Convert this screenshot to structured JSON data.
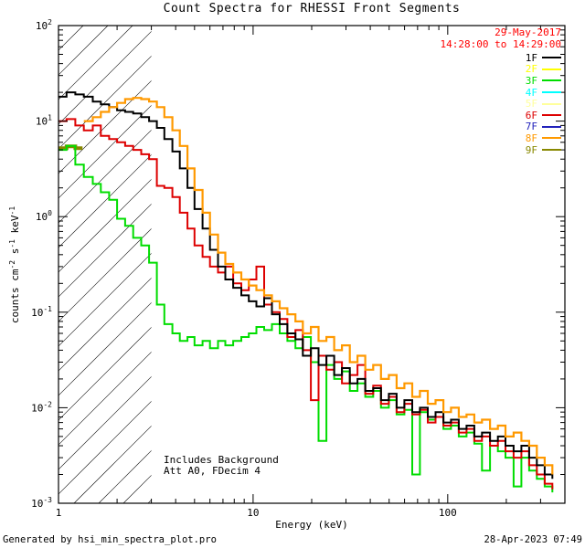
{
  "title": "Count Spectra for RHESSI Front Segments",
  "legend": {
    "date": "29-May-2017",
    "time_range": "14:28:00 to 14:29:00",
    "date_color": "#ff0000",
    "entries": [
      {
        "label": "1F",
        "color": "#000000"
      },
      {
        "label": "2F",
        "color": "#ffff00"
      },
      {
        "label": "3F",
        "color": "#00dd00"
      },
      {
        "label": "4F",
        "color": "#00ffff"
      },
      {
        "label": "5F",
        "color": "#ffff9c"
      },
      {
        "label": "6F",
        "color": "#dd0000"
      },
      {
        "label": "7F",
        "color": "#2222bb"
      },
      {
        "label": "8F",
        "color": "#ff9900"
      },
      {
        "label": "9F",
        "color": "#888800"
      }
    ]
  },
  "annotations": {
    "line1": "Includes Background",
    "line2": "Att A0, FDecim 4"
  },
  "footer": {
    "left": "Generated by hsi_min_spectra_plot.pro",
    "right": "28-Apr-2023 07:49"
  },
  "chart_data": {
    "type": "line",
    "title": "Count Spectra for RHESSI Front Segments",
    "xlabel": "Energy (keV)",
    "ylabel": "counts cm^-2 s^-1 keV^-1",
    "ylabel_parts": [
      {
        "t": "counts cm"
      },
      {
        "t": "-2",
        "sup": true
      },
      {
        "t": " s"
      },
      {
        "t": "-1",
        "sup": true
      },
      {
        "t": " keV"
      },
      {
        "t": "-1",
        "sup": true
      }
    ],
    "xscale": "log",
    "yscale": "log",
    "xlim": [
      1,
      400
    ],
    "ylim": [
      0.001,
      100
    ],
    "xticks": {
      "values": [
        1,
        10,
        100
      ],
      "labels": [
        "1",
        "10",
        "100"
      ]
    },
    "yticks": {
      "exponents": [
        -3,
        -2,
        -1,
        0,
        1,
        2
      ]
    },
    "hatched_region": {
      "x_start": 1,
      "x_end": 3,
      "style": "diagonal-hatch"
    },
    "grid": false,
    "legend_position": "top-right",
    "series": [
      {
        "name": "9F",
        "color": "#888800",
        "line_width": 4,
        "points": [
          [
            1.0,
            5.2
          ],
          [
            1.1,
            5.45
          ],
          [
            1.22,
            5.2
          ],
          [
            1.3,
            5.0
          ]
        ]
      },
      {
        "name": "3F",
        "color": "#00dd00",
        "line_width": 2,
        "points": [
          [
            1.0,
            5.0
          ],
          [
            1.1,
            5.5
          ],
          [
            1.22,
            3.5
          ],
          [
            1.35,
            2.6
          ],
          [
            1.5,
            2.2
          ],
          [
            1.65,
            1.8
          ],
          [
            1.82,
            1.5
          ],
          [
            2.0,
            0.95
          ],
          [
            2.2,
            0.8
          ],
          [
            2.42,
            0.6
          ],
          [
            2.66,
            0.5
          ],
          [
            2.92,
            0.33
          ],
          [
            3.2,
            0.12
          ],
          [
            3.5,
            0.075
          ],
          [
            3.85,
            0.06
          ],
          [
            4.2,
            0.05
          ],
          [
            4.6,
            0.055
          ],
          [
            5.0,
            0.045
          ],
          [
            5.5,
            0.05
          ],
          [
            6.0,
            0.042
          ],
          [
            6.6,
            0.05
          ],
          [
            7.2,
            0.045
          ],
          [
            7.9,
            0.05
          ],
          [
            8.7,
            0.055
          ],
          [
            9.5,
            0.06
          ],
          [
            10.4,
            0.07
          ],
          [
            11.4,
            0.065
          ],
          [
            12.5,
            0.075
          ],
          [
            13.7,
            0.06
          ],
          [
            15.0,
            0.05
          ],
          [
            16.5,
            0.042
          ],
          [
            18.0,
            0.055
          ],
          [
            19.8,
            0.03
          ],
          [
            21.7,
            0.0045
          ],
          [
            23.8,
            0.028
          ],
          [
            26.1,
            0.02
          ],
          [
            28.6,
            0.024
          ],
          [
            31.4,
            0.015
          ],
          [
            34.4,
            0.018
          ],
          [
            37.7,
            0.013
          ],
          [
            41.4,
            0.015
          ],
          [
            45.4,
            0.01
          ],
          [
            49.8,
            0.012
          ],
          [
            54.6,
            0.0085
          ],
          [
            59.9,
            0.0095
          ],
          [
            65.7,
            0.002
          ],
          [
            72.0,
            0.009
          ],
          [
            79.0,
            0.0075
          ],
          [
            86.6,
            0.008
          ],
          [
            95.0,
            0.006
          ],
          [
            104,
            0.0065
          ],
          [
            114,
            0.005
          ],
          [
            125,
            0.0055
          ],
          [
            137,
            0.0042
          ],
          [
            150,
            0.0022
          ],
          [
            165,
            0.004
          ],
          [
            181,
            0.0035
          ],
          [
            198,
            0.003
          ],
          [
            218,
            0.0015
          ],
          [
            239,
            0.003
          ],
          [
            262,
            0.0022
          ],
          [
            287,
            0.0018
          ],
          [
            315,
            0.0015
          ],
          [
            345,
            0.0013
          ]
        ]
      },
      {
        "name": "6F",
        "color": "#dd0000",
        "line_width": 2,
        "points": [
          [
            1.0,
            10
          ],
          [
            1.1,
            10.5
          ],
          [
            1.22,
            9
          ],
          [
            1.35,
            8
          ],
          [
            1.5,
            9
          ],
          [
            1.65,
            7
          ],
          [
            1.82,
            6.5
          ],
          [
            2.0,
            6
          ],
          [
            2.2,
            5.5
          ],
          [
            2.42,
            5
          ],
          [
            2.66,
            4.5
          ],
          [
            2.92,
            4
          ],
          [
            3.2,
            2.1
          ],
          [
            3.5,
            2.0
          ],
          [
            3.85,
            1.6
          ],
          [
            4.2,
            1.1
          ],
          [
            4.6,
            0.75
          ],
          [
            5.0,
            0.5
          ],
          [
            5.5,
            0.38
          ],
          [
            6.0,
            0.3
          ],
          [
            6.6,
            0.26
          ],
          [
            7.2,
            0.3
          ],
          [
            7.9,
            0.2
          ],
          [
            8.7,
            0.17
          ],
          [
            9.5,
            0.22
          ],
          [
            10.4,
            0.3
          ],
          [
            11.4,
            0.12
          ],
          [
            12.5,
            0.1
          ],
          [
            13.7,
            0.085
          ],
          [
            15.0,
            0.055
          ],
          [
            16.5,
            0.065
          ],
          [
            18.0,
            0.04
          ],
          [
            19.8,
            0.012
          ],
          [
            21.7,
            0.035
          ],
          [
            23.8,
            0.025
          ],
          [
            26.1,
            0.03
          ],
          [
            28.6,
            0.018
          ],
          [
            31.4,
            0.022
          ],
          [
            34.4,
            0.028
          ],
          [
            37.7,
            0.014
          ],
          [
            41.4,
            0.017
          ],
          [
            45.4,
            0.011
          ],
          [
            49.8,
            0.013
          ],
          [
            54.6,
            0.009
          ],
          [
            59.9,
            0.011
          ],
          [
            65.7,
            0.0085
          ],
          [
            72.0,
            0.0095
          ],
          [
            79.0,
            0.007
          ],
          [
            86.6,
            0.008
          ],
          [
            95.0,
            0.0065
          ],
          [
            104,
            0.007
          ],
          [
            114,
            0.0055
          ],
          [
            125,
            0.006
          ],
          [
            137,
            0.0045
          ],
          [
            150,
            0.005
          ],
          [
            165,
            0.004
          ],
          [
            181,
            0.0045
          ],
          [
            198,
            0.0035
          ],
          [
            218,
            0.003
          ],
          [
            239,
            0.0035
          ],
          [
            262,
            0.0025
          ],
          [
            287,
            0.002
          ],
          [
            315,
            0.0016
          ],
          [
            345,
            0.0014
          ]
        ]
      },
      {
        "name": "1F",
        "color": "#000000",
        "line_width": 2,
        "points": [
          [
            1.0,
            18
          ],
          [
            1.1,
            20
          ],
          [
            1.22,
            19
          ],
          [
            1.35,
            18
          ],
          [
            1.5,
            16
          ],
          [
            1.65,
            15
          ],
          [
            1.82,
            14
          ],
          [
            2.0,
            13
          ],
          [
            2.2,
            12.5
          ],
          [
            2.42,
            12
          ],
          [
            2.66,
            11
          ],
          [
            2.92,
            10
          ],
          [
            3.2,
            8.5
          ],
          [
            3.5,
            6.5
          ],
          [
            3.85,
            4.8
          ],
          [
            4.2,
            3.2
          ],
          [
            4.6,
            2.0
          ],
          [
            5.0,
            1.2
          ],
          [
            5.5,
            0.75
          ],
          [
            6.0,
            0.45
          ],
          [
            6.6,
            0.3
          ],
          [
            7.2,
            0.22
          ],
          [
            7.9,
            0.18
          ],
          [
            8.7,
            0.15
          ],
          [
            9.5,
            0.13
          ],
          [
            10.4,
            0.115
          ],
          [
            11.4,
            0.14
          ],
          [
            12.5,
            0.095
          ],
          [
            13.7,
            0.075
          ],
          [
            15.0,
            0.06
          ],
          [
            16.5,
            0.052
          ],
          [
            18.0,
            0.035
          ],
          [
            19.8,
            0.042
          ],
          [
            21.7,
            0.028
          ],
          [
            23.8,
            0.035
          ],
          [
            26.1,
            0.022
          ],
          [
            28.6,
            0.026
          ],
          [
            31.4,
            0.018
          ],
          [
            34.4,
            0.02
          ],
          [
            37.7,
            0.015
          ],
          [
            41.4,
            0.016
          ],
          [
            45.4,
            0.012
          ],
          [
            49.8,
            0.014
          ],
          [
            54.6,
            0.01
          ],
          [
            59.9,
            0.012
          ],
          [
            65.7,
            0.009
          ],
          [
            72.0,
            0.01
          ],
          [
            79.0,
            0.008
          ],
          [
            86.6,
            0.009
          ],
          [
            95.0,
            0.007
          ],
          [
            104,
            0.0075
          ],
          [
            114,
            0.006
          ],
          [
            125,
            0.0065
          ],
          [
            137,
            0.005
          ],
          [
            150,
            0.0055
          ],
          [
            165,
            0.0045
          ],
          [
            181,
            0.005
          ],
          [
            198,
            0.004
          ],
          [
            218,
            0.0035
          ],
          [
            239,
            0.004
          ],
          [
            262,
            0.003
          ],
          [
            287,
            0.0025
          ],
          [
            315,
            0.002
          ],
          [
            345,
            0.0018
          ]
        ]
      },
      {
        "name": "8F",
        "color": "#ff9900",
        "line_width": 2.2,
        "points": [
          [
            1.35,
            10
          ],
          [
            1.5,
            11
          ],
          [
            1.65,
            12.5
          ],
          [
            1.82,
            14
          ],
          [
            2.0,
            15.5
          ],
          [
            2.2,
            17
          ],
          [
            2.42,
            17.5
          ],
          [
            2.66,
            17
          ],
          [
            2.92,
            16
          ],
          [
            3.2,
            14
          ],
          [
            3.5,
            11
          ],
          [
            3.85,
            8
          ],
          [
            4.2,
            5.5
          ],
          [
            4.6,
            3.2
          ],
          [
            5.0,
            1.9
          ],
          [
            5.5,
            1.1
          ],
          [
            6.0,
            0.65
          ],
          [
            6.6,
            0.42
          ],
          [
            7.2,
            0.32
          ],
          [
            7.9,
            0.26
          ],
          [
            8.7,
            0.22
          ],
          [
            9.5,
            0.19
          ],
          [
            10.4,
            0.17
          ],
          [
            11.4,
            0.15
          ],
          [
            12.5,
            0.13
          ],
          [
            13.7,
            0.11
          ],
          [
            15.0,
            0.095
          ],
          [
            16.5,
            0.08
          ],
          [
            18.0,
            0.06
          ],
          [
            19.8,
            0.07
          ],
          [
            21.7,
            0.05
          ],
          [
            23.8,
            0.055
          ],
          [
            26.1,
            0.04
          ],
          [
            28.6,
            0.045
          ],
          [
            31.4,
            0.03
          ],
          [
            34.4,
            0.035
          ],
          [
            37.7,
            0.025
          ],
          [
            41.4,
            0.028
          ],
          [
            45.4,
            0.02
          ],
          [
            49.8,
            0.022
          ],
          [
            54.6,
            0.016
          ],
          [
            59.9,
            0.018
          ],
          [
            65.7,
            0.013
          ],
          [
            72.0,
            0.015
          ],
          [
            79.0,
            0.011
          ],
          [
            86.6,
            0.012
          ],
          [
            95.0,
            0.009
          ],
          [
            104,
            0.01
          ],
          [
            114,
            0.008
          ],
          [
            125,
            0.0085
          ],
          [
            137,
            0.007
          ],
          [
            150,
            0.0075
          ],
          [
            165,
            0.006
          ],
          [
            181,
            0.0065
          ],
          [
            198,
            0.005
          ],
          [
            218,
            0.0055
          ],
          [
            239,
            0.0045
          ],
          [
            262,
            0.004
          ],
          [
            287,
            0.003
          ],
          [
            315,
            0.0025
          ],
          [
            345,
            0.002
          ]
        ]
      }
    ]
  }
}
